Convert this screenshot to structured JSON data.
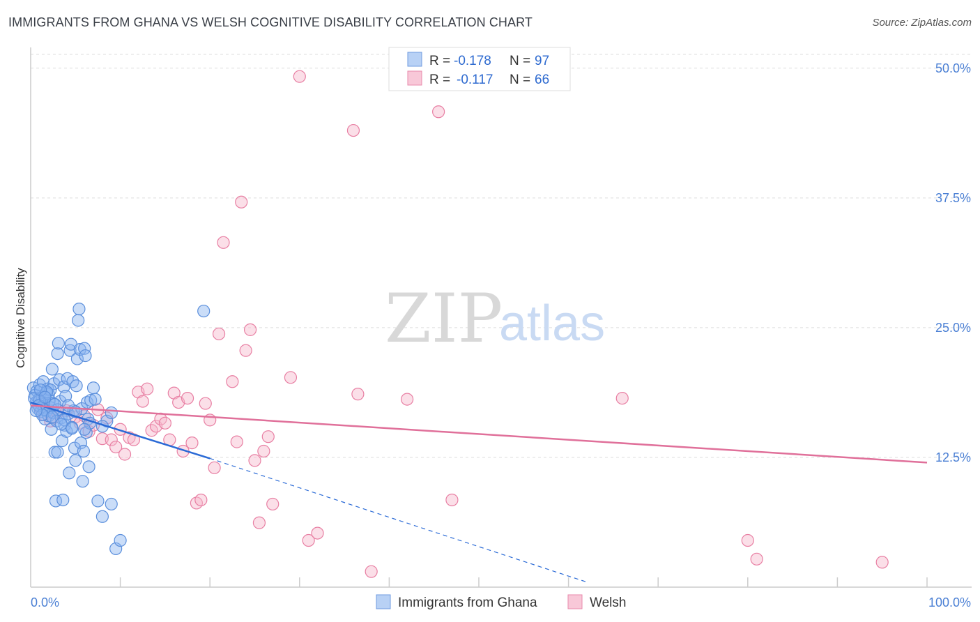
{
  "title": "IMMIGRANTS FROM GHANA VS WELSH COGNITIVE DISABILITY CORRELATION CHART",
  "source": "Source: ZipAtlas.com",
  "watermark": {
    "zip": "ZIP",
    "atlas": "atlas"
  },
  "legend": {
    "r_label": "R =",
    "n_label": "N =",
    "series1": {
      "r": "-0.178",
      "n": "97"
    },
    "series2": {
      "r": "-0.117",
      "n": "66"
    }
  },
  "chart_data": {
    "type": "scatter",
    "xlabel": "",
    "ylabel": "Cognitive Disability",
    "xlim": [
      0,
      100
    ],
    "ylim": [
      0,
      52
    ],
    "x_tick_labels": [
      "0.0%",
      "100.0%"
    ],
    "y_ticks": [
      12.5,
      25.0,
      37.5,
      50.0
    ],
    "y_tick_labels": [
      "12.5%",
      "25.0%",
      "37.5%",
      "50.0%"
    ],
    "grid": true,
    "legend_position": "top-center",
    "series": [
      {
        "name": "Immigrants from Ghana",
        "color": "#8ab4f0",
        "stroke": "#5b8fdc",
        "trend": {
          "x": [
            0,
            20
          ],
          "y": [
            17.8,
            12.4
          ],
          "color": "#2a6ad6"
        },
        "trend_extension": {
          "x": [
            20,
            62
          ],
          "y": [
            12.4,
            0.5
          ]
        },
        "points": [
          [
            0.3,
            19.2
          ],
          [
            0.5,
            18.5
          ],
          [
            0.6,
            17.8
          ],
          [
            0.7,
            18.9
          ],
          [
            0.8,
            17.2
          ],
          [
            0.9,
            18.1
          ],
          [
            1.0,
            19.5
          ],
          [
            1.1,
            16.9
          ],
          [
            1.2,
            17.6
          ],
          [
            1.3,
            18.3
          ],
          [
            1.4,
            19.8
          ],
          [
            1.5,
            17.4
          ],
          [
            1.6,
            16.2
          ],
          [
            1.7,
            18.7
          ],
          [
            1.8,
            17.0
          ],
          [
            1.9,
            19.1
          ],
          [
            2.0,
            16.5
          ],
          [
            2.1,
            18.0
          ],
          [
            2.2,
            17.3
          ],
          [
            2.3,
            15.2
          ],
          [
            2.4,
            21.0
          ],
          [
            2.5,
            16.8
          ],
          [
            2.6,
            19.6
          ],
          [
            2.7,
            13.0
          ],
          [
            2.8,
            8.3
          ],
          [
            2.9,
            16.0
          ],
          [
            3.0,
            22.5
          ],
          [
            3.1,
            23.5
          ],
          [
            3.2,
            20.0
          ],
          [
            3.3,
            17.9
          ],
          [
            3.4,
            16.3
          ],
          [
            3.5,
            14.1
          ],
          [
            3.6,
            8.4
          ],
          [
            3.7,
            19.3
          ],
          [
            3.8,
            15.6
          ],
          [
            3.9,
            18.4
          ],
          [
            4.0,
            15.0
          ],
          [
            4.1,
            20.1
          ],
          [
            4.2,
            16.7
          ],
          [
            4.3,
            11.0
          ],
          [
            4.4,
            22.8
          ],
          [
            4.5,
            23.4
          ],
          [
            4.6,
            15.4
          ],
          [
            4.7,
            19.8
          ],
          [
            4.8,
            17.0
          ],
          [
            4.9,
            13.4
          ],
          [
            5.0,
            12.2
          ],
          [
            5.1,
            19.4
          ],
          [
            5.2,
            22.0
          ],
          [
            5.3,
            25.7
          ],
          [
            5.4,
            26.8
          ],
          [
            5.5,
            22.9
          ],
          [
            5.6,
            13.9
          ],
          [
            5.7,
            17.2
          ],
          [
            5.8,
            10.2
          ],
          [
            5.9,
            13.1
          ],
          [
            6.0,
            23.0
          ],
          [
            6.1,
            22.3
          ],
          [
            6.2,
            14.9
          ],
          [
            6.3,
            17.8
          ],
          [
            6.4,
            16.2
          ],
          [
            6.5,
            11.6
          ],
          [
            6.6,
            15.8
          ],
          [
            6.7,
            18.0
          ],
          [
            7.0,
            19.2
          ],
          [
            7.5,
            8.3
          ],
          [
            8.0,
            6.8
          ],
          [
            8.5,
            16.0
          ],
          [
            9.0,
            8.0
          ],
          [
            9.5,
            3.7
          ],
          [
            10.0,
            4.5
          ],
          [
            1.0,
            18.0
          ],
          [
            1.5,
            17.1
          ],
          [
            2.0,
            18.6
          ],
          [
            2.5,
            17.7
          ],
          [
            0.4,
            18.2
          ],
          [
            0.9,
            17.5
          ],
          [
            1.3,
            16.6
          ],
          [
            2.2,
            19.0
          ],
          [
            3.0,
            17.1
          ],
          [
            3.8,
            16.1
          ],
          [
            4.6,
            15.3
          ],
          [
            1.8,
            18.8
          ],
          [
            2.7,
            17.6
          ],
          [
            1.1,
            19.0
          ],
          [
            0.6,
            17.0
          ],
          [
            1.6,
            18.3
          ],
          [
            2.4,
            16.4
          ],
          [
            3.4,
            15.7
          ],
          [
            4.2,
            17.5
          ],
          [
            5.0,
            16.9
          ],
          [
            6.0,
            15.2
          ],
          [
            7.2,
            18.1
          ],
          [
            8.0,
            15.5
          ],
          [
            9.0,
            16.8
          ],
          [
            19.3,
            26.6
          ],
          [
            3.0,
            13.0
          ]
        ]
      },
      {
        "name": "Welsh",
        "color": "#f6b8cc",
        "stroke": "#e87fa3",
        "trend": {
          "x": [
            0,
            100
          ],
          "y": [
            17.5,
            12.0
          ],
          "color": "#e0709a"
        },
        "points": [
          [
            1.0,
            17.3
          ],
          [
            1.5,
            16.6
          ],
          [
            2.0,
            17.1
          ],
          [
            2.5,
            16.3
          ],
          [
            3.0,
            16.8
          ],
          [
            4.0,
            17.0
          ],
          [
            5.0,
            16.4
          ],
          [
            5.5,
            15.8
          ],
          [
            6.0,
            16.5
          ],
          [
            6.5,
            15.0
          ],
          [
            7.0,
            15.6
          ],
          [
            7.5,
            17.1
          ],
          [
            8.0,
            14.3
          ],
          [
            8.5,
            16.3
          ],
          [
            9.0,
            14.2
          ],
          [
            9.5,
            13.5
          ],
          [
            10.0,
            15.2
          ],
          [
            10.5,
            12.8
          ],
          [
            11.0,
            14.4
          ],
          [
            11.5,
            14.2
          ],
          [
            12.0,
            18.8
          ],
          [
            12.5,
            17.9
          ],
          [
            13.0,
            19.1
          ],
          [
            13.5,
            15.1
          ],
          [
            14.0,
            15.5
          ],
          [
            14.5,
            16.2
          ],
          [
            15.0,
            15.8
          ],
          [
            15.5,
            14.2
          ],
          [
            16.0,
            18.7
          ],
          [
            16.5,
            17.8
          ],
          [
            17.0,
            13.1
          ],
          [
            17.5,
            18.2
          ],
          [
            18.0,
            13.9
          ],
          [
            18.5,
            8.1
          ],
          [
            19.0,
            8.4
          ],
          [
            19.5,
            17.7
          ],
          [
            20.0,
            16.1
          ],
          [
            20.5,
            11.5
          ],
          [
            21.0,
            24.4
          ],
          [
            21.5,
            33.2
          ],
          [
            22.5,
            19.8
          ],
          [
            23.0,
            14.0
          ],
          [
            23.5,
            37.1
          ],
          [
            24.0,
            22.8
          ],
          [
            24.5,
            24.8
          ],
          [
            25.0,
            12.2
          ],
          [
            25.5,
            6.2
          ],
          [
            26.0,
            13.1
          ],
          [
            26.5,
            14.5
          ],
          [
            27.0,
            8.0
          ],
          [
            29.0,
            20.2
          ],
          [
            30.0,
            49.2
          ],
          [
            31.0,
            4.5
          ],
          [
            32.0,
            5.2
          ],
          [
            36.0,
            44.0
          ],
          [
            36.5,
            18.6
          ],
          [
            38.0,
            1.5
          ],
          [
            42.0,
            18.1
          ],
          [
            45.5,
            45.8
          ],
          [
            47.0,
            8.4
          ],
          [
            66.0,
            18.2
          ],
          [
            81.0,
            2.7
          ],
          [
            80.0,
            4.5
          ],
          [
            95.0,
            2.4
          ],
          [
            1.2,
            17.8
          ],
          [
            2.2,
            16.0
          ]
        ]
      }
    ]
  }
}
